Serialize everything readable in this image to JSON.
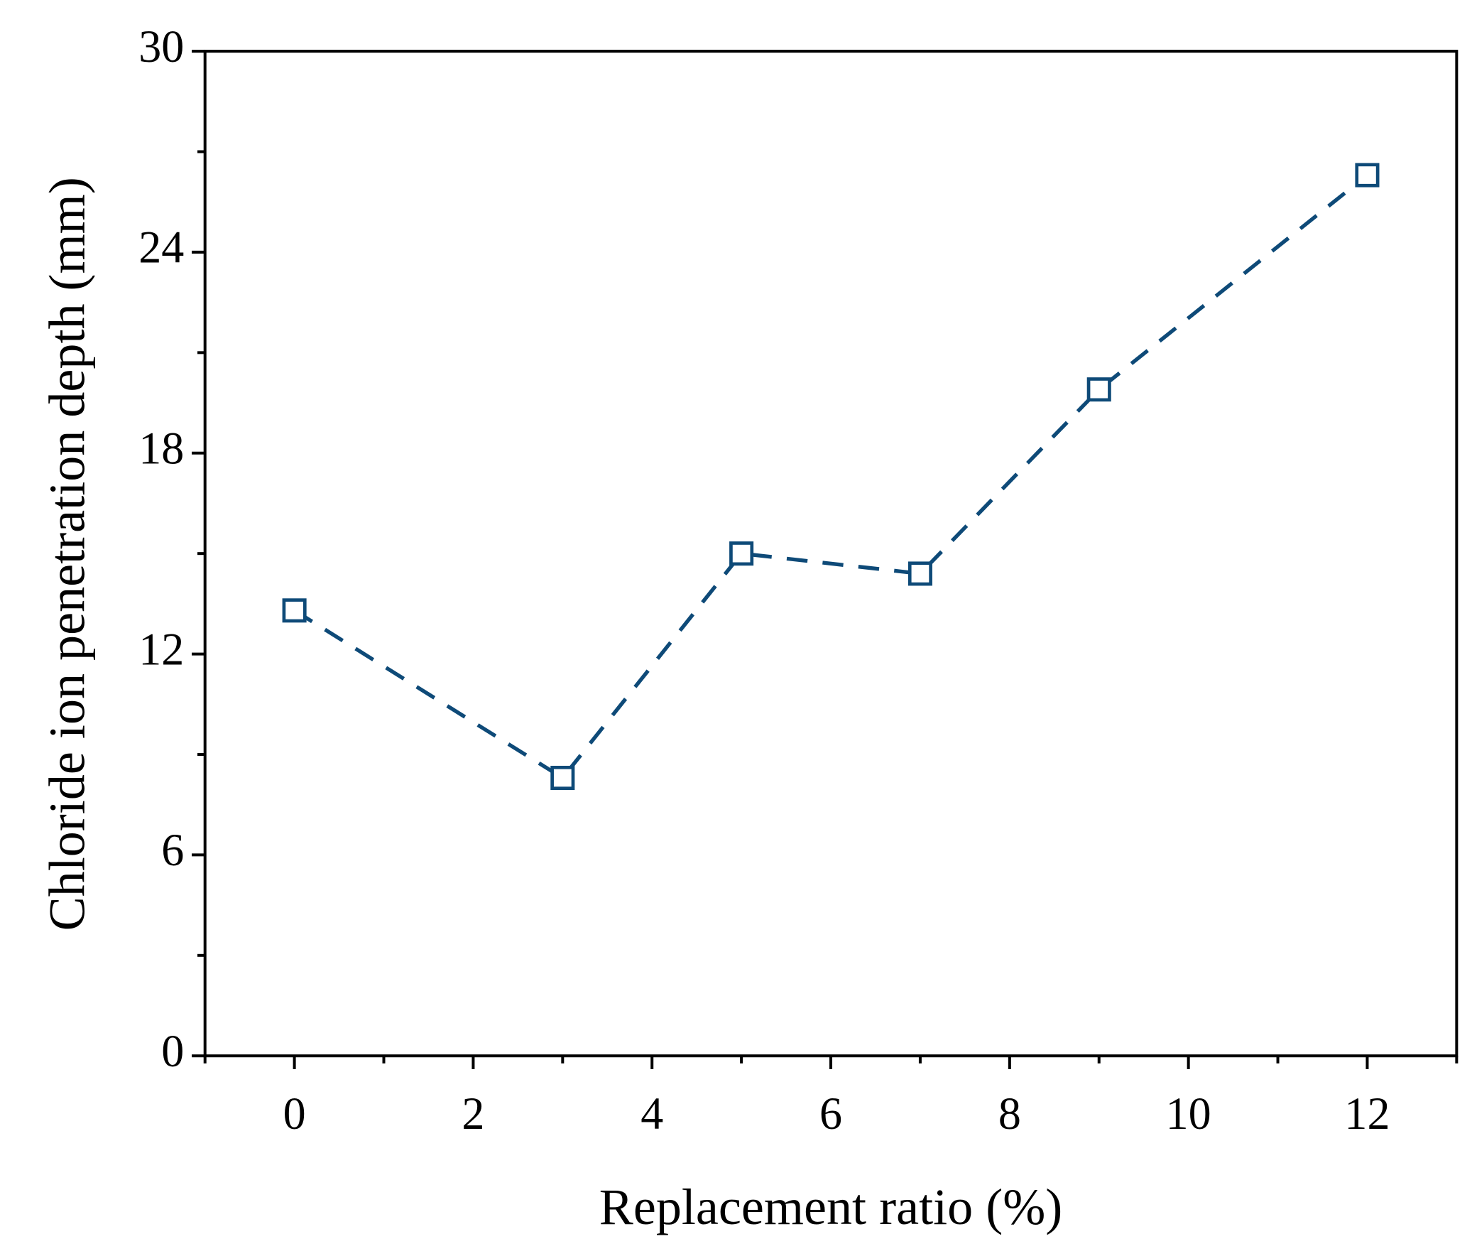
{
  "chart_data": {
    "type": "line",
    "x_label": "Replacement ratio (%)",
    "y_label": "Chloride ion penetration depth (mm)",
    "x": [
      0,
      3,
      5,
      7,
      9,
      12
    ],
    "series": [
      {
        "color": "#0e4a78",
        "values": [
          13.3,
          8.3,
          15.0,
          14.4,
          19.9,
          26.3
        ]
      }
    ],
    "xlim": [
      -1,
      13
    ],
    "xticks": [
      0,
      2,
      4,
      6,
      8,
      10,
      12
    ],
    "ylim": [
      0,
      30
    ],
    "yticks": [
      0,
      6,
      12,
      18,
      24,
      30
    ],
    "line_style": "dashed",
    "marker": "open-square",
    "grid": false
  }
}
